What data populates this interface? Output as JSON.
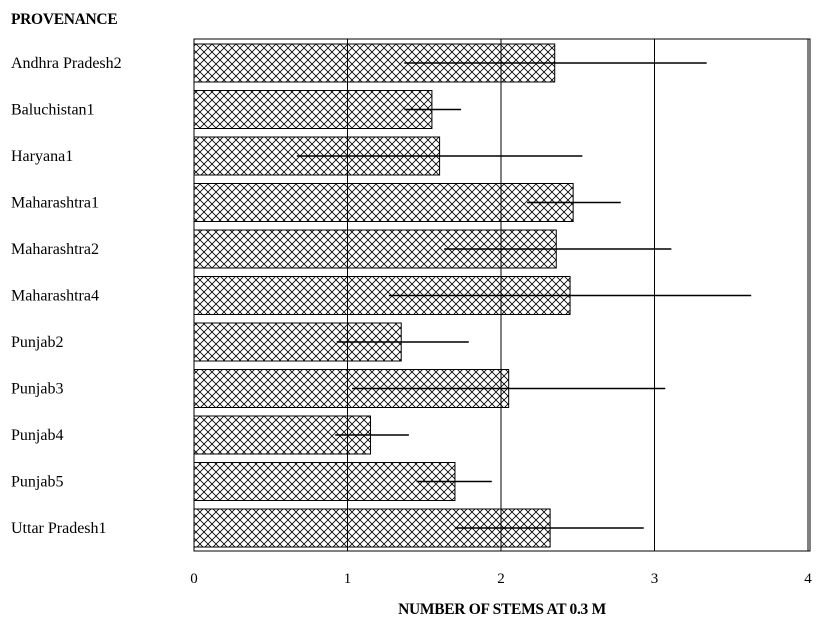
{
  "chart_data": {
    "type": "bar",
    "orientation": "horizontal",
    "title": "",
    "ylabel": "PROVENANCE",
    "xlabel": "NUMBER OF STEMS AT 0.3 M",
    "xlim": [
      0,
      4
    ],
    "xticks": [
      "0",
      "1",
      "2",
      "3",
      "4"
    ],
    "grid": true,
    "categories": [
      "Andhra Pradesh2",
      "Baluchistan1",
      "Haryana1",
      "Maharashtra1",
      "Maharashtra2",
      "Maharashtra4",
      "Punjab2",
      "Punjab3",
      "Punjab4",
      "Punjab5",
      "Uttar Pradesh1"
    ],
    "values": [
      2.35,
      1.55,
      1.6,
      2.47,
      2.36,
      2.45,
      1.35,
      2.05,
      1.15,
      1.7,
      2.32
    ],
    "error_bars": [
      [
        1.37,
        3.34
      ],
      [
        1.37,
        1.74
      ],
      [
        0.67,
        2.53
      ],
      [
        2.17,
        2.78
      ],
      [
        1.63,
        3.11
      ],
      [
        1.27,
        3.63
      ],
      [
        0.93,
        1.79
      ],
      [
        1.03,
        3.07
      ],
      [
        0.92,
        1.4
      ],
      [
        1.45,
        1.94
      ],
      [
        1.7,
        2.93
      ]
    ],
    "fill_pattern": "crosshatch",
    "bar_color": "#000000",
    "background": "#ffffff"
  }
}
